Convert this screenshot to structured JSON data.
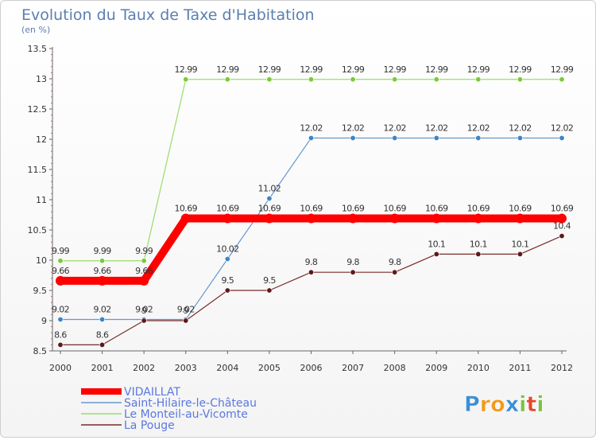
{
  "chart_data": {
    "type": "line",
    "title": "Evolution du Taux de Taxe d'Habitation",
    "subtitle": "(en %)",
    "x": [
      "2000",
      "2001",
      "2002",
      "2003",
      "2004",
      "2005",
      "2006",
      "2007",
      "2008",
      "2009",
      "2010",
      "2011",
      "2012"
    ],
    "ylim": [
      8.5,
      13.5
    ],
    "yticks": [
      "8.5",
      "9",
      "9.5",
      "10",
      "10.5",
      "11",
      "11.5",
      "12",
      "12.5",
      "13",
      "13.5"
    ],
    "grid": false,
    "legend_position": "bottom-left",
    "series": [
      {
        "name": "VIDAILLAT",
        "color": "#ff0000",
        "values": [
          9.66,
          9.66,
          9.66,
          10.69,
          10.69,
          10.69,
          10.69,
          10.69,
          10.69,
          10.69,
          10.69,
          10.69,
          10.69
        ],
        "labels": [
          "9.66",
          "9.66",
          "9.66",
          "10.69",
          "10.69",
          "10.69",
          "10.69",
          "10.69",
          "10.69",
          "10.69",
          "10.69",
          "10.69",
          "10.69"
        ]
      },
      {
        "name": "Saint-Hilaire-le-Château",
        "color": "#6699cc",
        "marker_color": "#3d85c6",
        "values": [
          9.02,
          9.02,
          9.02,
          9.02,
          10.02,
          11.02,
          12.02,
          12.02,
          12.02,
          12.02,
          12.02,
          12.02,
          12.02
        ],
        "labels": [
          "9.02",
          "9.02",
          "9.02",
          "9.02",
          "10.02",
          "11.02",
          "12.02",
          "12.02",
          "12.02",
          "12.02",
          "12.02",
          "12.02",
          "12.02"
        ]
      },
      {
        "name": "Le Monteil-au-Vicomte",
        "color": "#99dd66",
        "marker_color": "#77cc33",
        "values": [
          9.99,
          9.99,
          9.99,
          12.99,
          12.99,
          12.99,
          12.99,
          12.99,
          12.99,
          12.99,
          12.99,
          12.99,
          12.99
        ],
        "labels": [
          "9.99",
          "9.99",
          "9.99",
          "12.99",
          "12.99",
          "12.99",
          "12.99",
          "12.99",
          "12.99",
          "12.99",
          "12.99",
          "12.99",
          "12.99"
        ]
      },
      {
        "name": "La Pouge",
        "color": "#7a2a2a",
        "marker_color": "#5c1a1a",
        "values": [
          8.6,
          8.6,
          9.0,
          9.0,
          9.5,
          9.5,
          9.8,
          9.8,
          9.8,
          10.1,
          10.1,
          10.1,
          10.4
        ],
        "labels": [
          "8.6",
          "8.6",
          "9",
          "9",
          "9.5",
          "9.5",
          "9.8",
          "9.8",
          "9.8",
          "10.1",
          "10.1",
          "10.1",
          "10.4"
        ]
      }
    ]
  },
  "brand": {
    "name": "Proxiti",
    "letters": [
      "P",
      "r",
      "o",
      "x",
      "i",
      "t",
      "i"
    ],
    "colors": [
      "#3b8fd6",
      "#f29a1c",
      "#f29a1c",
      "#3b8fd6",
      "#7dc242",
      "#e8452c",
      "#7dc242"
    ]
  }
}
